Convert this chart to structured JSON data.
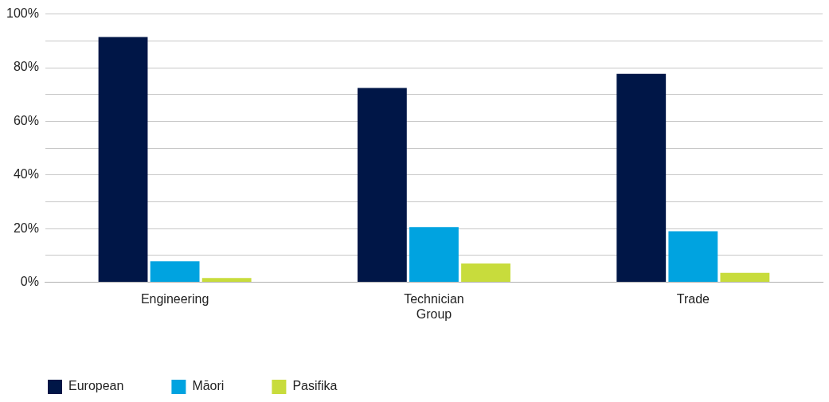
{
  "chart_data": {
    "type": "bar",
    "categories": [
      "Engineering",
      "Technician Group",
      "Trade"
    ],
    "series": [
      {
        "name": "European",
        "color": "#001647",
        "values": [
          91.4,
          72.4,
          77.7
        ]
      },
      {
        "name": "Māori",
        "color": "#00a3e0",
        "values": [
          7.8,
          20.6,
          19.0
        ]
      },
      {
        "name": "Pasifika",
        "color": "#c8dc3c",
        "values": [
          1.6,
          7.0,
          3.5
        ]
      }
    ],
    "ylim": [
      0,
      100
    ],
    "yticks": [
      {
        "value": 0,
        "label": "0%"
      },
      {
        "value": 10,
        "label": null
      },
      {
        "value": 20,
        "label": "20%"
      },
      {
        "value": 30,
        "label": null
      },
      {
        "value": 40,
        "label": "40%"
      },
      {
        "value": 50,
        "label": null
      },
      {
        "value": 60,
        "label": "60%"
      },
      {
        "value": 70,
        "label": null
      },
      {
        "value": 80,
        "label": "80%"
      },
      {
        "value": 90,
        "label": null
      },
      {
        "value": 100,
        "label": "100%"
      }
    ],
    "grid": "y",
    "legend": "bottom left"
  }
}
